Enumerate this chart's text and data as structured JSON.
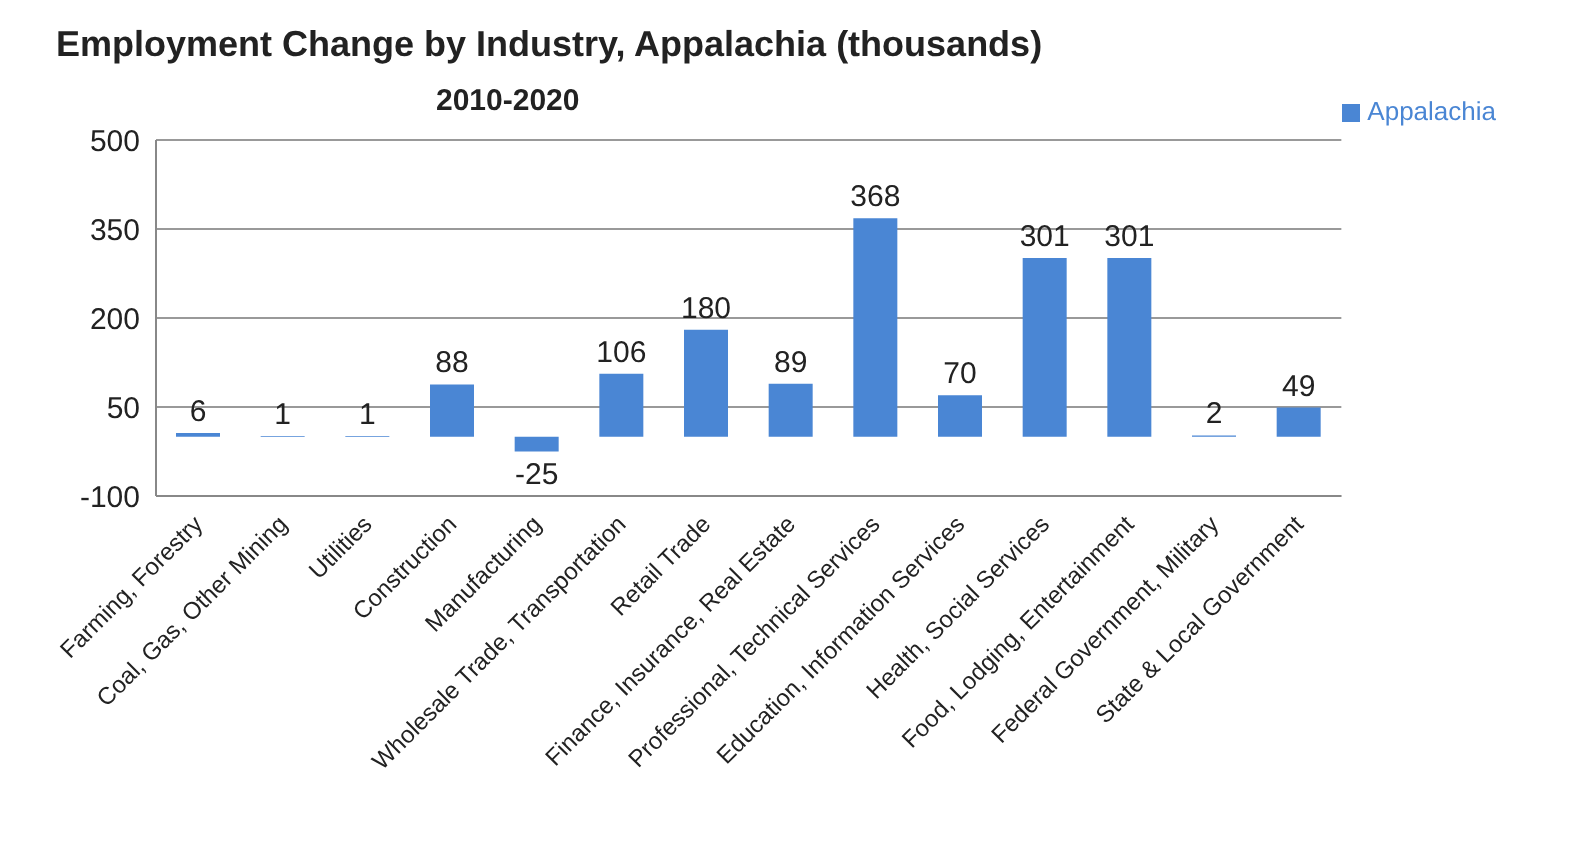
{
  "chart_data": {
    "type": "bar",
    "title": "Employment Change by Industry, Appalachia (thousands)",
    "subtitle": "2010-2020",
    "categories": [
      "Farming, Forestry",
      "Coal, Gas, Other Mining",
      "Utilities",
      "Construction",
      "Manufacturing",
      "Wholesale Trade, Transportation",
      "Retail Trade",
      "Finance, Insurance, Real Estate",
      "Professional, Technical Services",
      "Education, Information Services",
      "Health, Social Services",
      "Food, Lodging, Entertainment",
      "Federal Government, Military",
      "State & Local Government"
    ],
    "series": [
      {
        "name": "Appalachia",
        "color": "#4a86d4",
        "values": [
          6,
          1,
          1,
          88,
          -25,
          106,
          180,
          89,
          368,
          70,
          301,
          301,
          2,
          49
        ]
      }
    ],
    "ylim": [
      -100,
      500
    ],
    "yticks": [
      -100,
      50,
      200,
      350,
      500
    ],
    "grid": "y",
    "legend": "top right",
    "data_labels": true
  }
}
